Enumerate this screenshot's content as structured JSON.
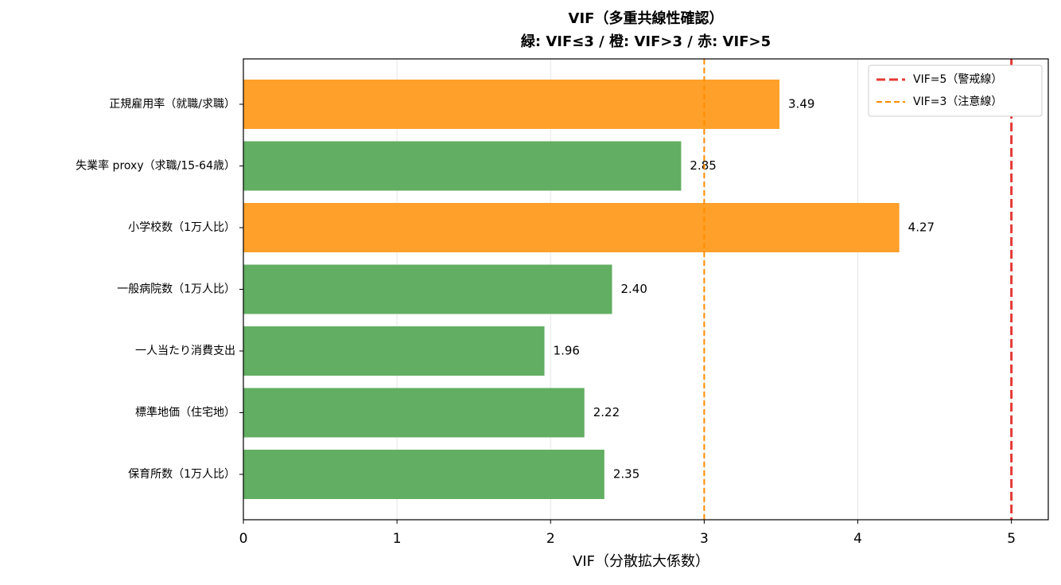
{
  "chart_data": {
    "type": "barh",
    "title": "VIF（多重共線性確認）",
    "subtitle": "緑: VIF≤3 / 橙: VIF>3 / 赤: VIF>5",
    "xlabel": "VIF（分散拡大係数）",
    "categories": [
      "正規雇用率（就職/求職）",
      "失業率 proxy（求職/15-64歳）",
      "小学校数（1万人比）",
      "一般病院数（1万人比）",
      "一人当たり消費支出",
      "標準地価（住宅地）",
      "保育所数（1万人比）"
    ],
    "values": [
      3.49,
      2.85,
      4.27,
      2.4,
      1.96,
      2.22,
      2.35
    ],
    "value_labels": [
      "3.49",
      "2.85",
      "4.27",
      "2.40",
      "1.96",
      "2.22",
      "2.35"
    ],
    "colors": [
      "#ffa02a",
      "#62ae62",
      "#ffa02a",
      "#62ae62",
      "#62ae62",
      "#62ae62",
      "#62ae62"
    ],
    "xlim": [
      0,
      5.24
    ],
    "xticks": [
      0,
      1,
      2,
      3,
      4,
      5
    ],
    "grid": true,
    "reference_lines": [
      {
        "name": "VIF=5（警戒線）",
        "value": 5,
        "color": "#e53935"
      },
      {
        "name": "VIF=3（注意線）",
        "value": 3,
        "color": "#ff8c00"
      }
    ],
    "legend": "upper right"
  }
}
